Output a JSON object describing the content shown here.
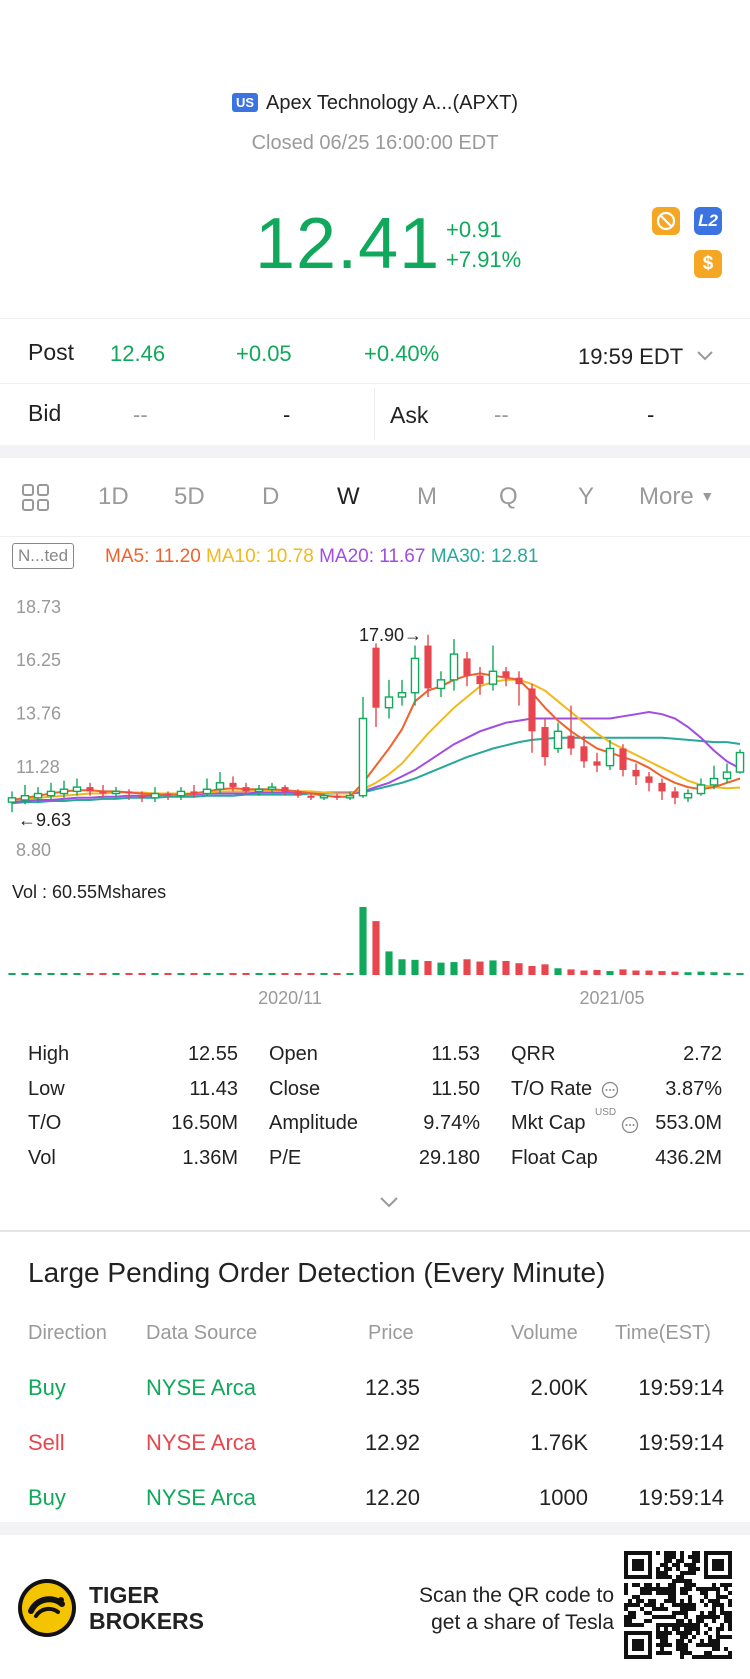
{
  "header": {
    "market_badge": "US",
    "title": "Apex Technology A...(APXT)",
    "status": "Closed 06/25 16:00:00 EDT"
  },
  "quote": {
    "price": "12.41",
    "change": "+0.91",
    "change_pct": "+7.91%",
    "l2_label": "L2",
    "dollar_label": "$"
  },
  "post": {
    "label": "Post",
    "price": "12.46",
    "change": "+0.05",
    "change_pct": "+0.40%",
    "time": "19:59 EDT"
  },
  "bid": {
    "label": "Bid",
    "price": "--",
    "size": "-"
  },
  "ask": {
    "label": "Ask",
    "price": "--",
    "size": "-"
  },
  "tabs": [
    "1D",
    "5D",
    "D",
    "W",
    "M",
    "Q",
    "Y",
    "More"
  ],
  "active_tab": "W",
  "indicators": {
    "adjust_label": "N...ted",
    "ma5": "MA5: 11.20",
    "ma10": "MA10: 10.78",
    "ma20": "MA20: 11.67",
    "ma30": "MA30: 12.81",
    "colors": {
      "ma5": "#f0622d",
      "ma10": "#f2b81c",
      "ma20": "#a04de2",
      "ma30": "#27a89a"
    }
  },
  "chart_data": {
    "type": "candlestick",
    "y_ticks": [
      "18.73",
      "16.25",
      "13.76",
      "11.28",
      "8.80"
    ],
    "ylim": [
      8.8,
      18.73
    ],
    "high_annotation": "17.90",
    "low_annotation": "9.63",
    "x_ticks": [
      "2020/11",
      "2021/05"
    ],
    "volume_label": "Vol  : 60.55Mshares",
    "candles": [
      {
        "o": 10.1,
        "c": 10.3,
        "h": 10.6,
        "l": 9.63
      },
      {
        "o": 10.2,
        "c": 10.4,
        "h": 10.9,
        "l": 10.0
      },
      {
        "o": 10.3,
        "c": 10.5,
        "h": 10.8,
        "l": 10.1
      },
      {
        "o": 10.4,
        "c": 10.6,
        "h": 11.0,
        "l": 10.2
      },
      {
        "o": 10.5,
        "c": 10.7,
        "h": 11.1,
        "l": 10.3
      },
      {
        "o": 10.6,
        "c": 10.8,
        "h": 11.2,
        "l": 10.4
      },
      {
        "o": 10.8,
        "c": 10.6,
        "h": 11.0,
        "l": 10.4
      },
      {
        "o": 10.6,
        "c": 10.5,
        "h": 10.9,
        "l": 10.3
      },
      {
        "o": 10.5,
        "c": 10.6,
        "h": 10.8,
        "l": 10.3
      },
      {
        "o": 10.6,
        "c": 10.5,
        "h": 10.7,
        "l": 10.2
      },
      {
        "o": 10.4,
        "c": 10.3,
        "h": 10.6,
        "l": 10.1
      },
      {
        "o": 10.3,
        "c": 10.5,
        "h": 10.8,
        "l": 10.1
      },
      {
        "o": 10.5,
        "c": 10.4,
        "h": 10.6,
        "l": 10.2
      },
      {
        "o": 10.4,
        "c": 10.6,
        "h": 10.8,
        "l": 10.2
      },
      {
        "o": 10.6,
        "c": 10.5,
        "h": 10.9,
        "l": 10.3
      },
      {
        "o": 10.5,
        "c": 10.7,
        "h": 11.2,
        "l": 10.4
      },
      {
        "o": 10.7,
        "c": 11.0,
        "h": 11.5,
        "l": 10.5
      },
      {
        "o": 11.0,
        "c": 10.8,
        "h": 11.3,
        "l": 10.6
      },
      {
        "o": 10.8,
        "c": 10.6,
        "h": 11.0,
        "l": 10.5
      },
      {
        "o": 10.6,
        "c": 10.7,
        "h": 10.9,
        "l": 10.4
      },
      {
        "o": 10.7,
        "c": 10.8,
        "h": 11.0,
        "l": 10.5
      },
      {
        "o": 10.8,
        "c": 10.6,
        "h": 10.9,
        "l": 10.4
      },
      {
        "o": 10.6,
        "c": 10.4,
        "h": 10.7,
        "l": 10.3
      },
      {
        "o": 10.4,
        "c": 10.3,
        "h": 10.5,
        "l": 10.2
      },
      {
        "o": 10.3,
        "c": 10.4,
        "h": 10.5,
        "l": 10.2
      },
      {
        "o": 10.4,
        "c": 10.3,
        "h": 10.5,
        "l": 10.2
      },
      {
        "o": 10.3,
        "c": 10.4,
        "h": 10.6,
        "l": 10.2
      },
      {
        "o": 10.4,
        "c": 14.0,
        "h": 15.0,
        "l": 10.3
      },
      {
        "o": 17.3,
        "c": 14.5,
        "h": 17.5,
        "l": 13.6
      },
      {
        "o": 14.5,
        "c": 15.0,
        "h": 15.8,
        "l": 14.0
      },
      {
        "o": 15.0,
        "c": 15.2,
        "h": 15.8,
        "l": 14.6
      },
      {
        "o": 15.2,
        "c": 16.8,
        "h": 17.4,
        "l": 14.6
      },
      {
        "o": 17.4,
        "c": 15.4,
        "h": 17.9,
        "l": 15.0
      },
      {
        "o": 15.4,
        "c": 15.8,
        "h": 16.2,
        "l": 15.0
      },
      {
        "o": 15.8,
        "c": 17.0,
        "h": 17.7,
        "l": 15.3
      },
      {
        "o": 16.8,
        "c": 16.0,
        "h": 17.1,
        "l": 15.5
      },
      {
        "o": 16.0,
        "c": 15.6,
        "h": 16.4,
        "l": 15.1
      },
      {
        "o": 15.6,
        "c": 16.2,
        "h": 17.4,
        "l": 15.3
      },
      {
        "o": 16.2,
        "c": 15.9,
        "h": 16.4,
        "l": 15.5
      },
      {
        "o": 15.9,
        "c": 15.6,
        "h": 16.2,
        "l": 14.6
      },
      {
        "o": 15.4,
        "c": 13.4,
        "h": 15.6,
        "l": 12.4
      },
      {
        "o": 13.6,
        "c": 12.2,
        "h": 14.0,
        "l": 11.8
      },
      {
        "o": 12.6,
        "c": 13.4,
        "h": 13.8,
        "l": 12.4
      },
      {
        "o": 13.2,
        "c": 12.6,
        "h": 14.6,
        "l": 12.3
      },
      {
        "o": 12.7,
        "c": 12.0,
        "h": 13.2,
        "l": 11.7
      },
      {
        "o": 12.0,
        "c": 11.8,
        "h": 12.4,
        "l": 11.5
      },
      {
        "o": 11.8,
        "c": 12.6,
        "h": 13.0,
        "l": 11.6
      },
      {
        "o": 12.6,
        "c": 11.6,
        "h": 12.8,
        "l": 11.3
      },
      {
        "o": 11.6,
        "c": 11.3,
        "h": 11.9,
        "l": 10.9
      },
      {
        "o": 11.3,
        "c": 11.0,
        "h": 11.5,
        "l": 10.6
      },
      {
        "o": 11.0,
        "c": 10.6,
        "h": 11.2,
        "l": 10.2
      },
      {
        "o": 10.6,
        "c": 10.3,
        "h": 10.8,
        "l": 10.0
      },
      {
        "o": 10.3,
        "c": 10.5,
        "h": 10.7,
        "l": 10.1
      },
      {
        "o": 10.5,
        "c": 10.9,
        "h": 11.2,
        "l": 10.4
      },
      {
        "o": 10.9,
        "c": 11.2,
        "h": 11.8,
        "l": 10.7
      },
      {
        "o": 11.2,
        "c": 11.5,
        "h": 11.9,
        "l": 11.0
      },
      {
        "o": 11.5,
        "c": 12.41,
        "h": 12.55,
        "l": 11.43
      }
    ],
    "ma5": [
      10.2,
      10.3,
      10.4,
      10.5,
      10.6,
      10.65,
      10.65,
      10.6,
      10.6,
      10.55,
      10.5,
      10.45,
      10.45,
      10.45,
      10.5,
      10.6,
      10.7,
      10.75,
      10.7,
      10.7,
      10.7,
      10.65,
      10.6,
      10.5,
      10.4,
      10.35,
      10.35,
      11.0,
      11.8,
      12.6,
      13.5,
      14.8,
      15.3,
      15.5,
      15.8,
      16.0,
      16.1,
      16.0,
      15.9,
      15.8,
      15.2,
      14.5,
      13.9,
      13.4,
      13.0,
      12.6,
      12.4,
      12.2,
      12.0,
      11.7,
      11.3,
      11.0,
      10.8,
      10.7,
      10.8,
      11.0,
      11.2
    ],
    "ma10": [
      10.2,
      10.25,
      10.3,
      10.35,
      10.4,
      10.45,
      10.5,
      10.5,
      10.55,
      10.55,
      10.55,
      10.5,
      10.5,
      10.5,
      10.5,
      10.55,
      10.6,
      10.6,
      10.6,
      10.65,
      10.65,
      10.65,
      10.6,
      10.6,
      10.55,
      10.5,
      10.5,
      10.7,
      11.0,
      11.4,
      11.9,
      12.6,
      13.3,
      13.9,
      14.5,
      15.0,
      15.5,
      15.7,
      15.8,
      15.8,
      15.6,
      15.3,
      14.8,
      14.3,
      13.8,
      13.3,
      12.9,
      12.6,
      12.3,
      12.0,
      11.7,
      11.4,
      11.1,
      10.9,
      10.8,
      10.75,
      10.78
    ],
    "ma20": [
      10.1,
      10.15,
      10.2,
      10.2,
      10.25,
      10.3,
      10.3,
      10.35,
      10.35,
      10.4,
      10.4,
      10.4,
      10.45,
      10.45,
      10.45,
      10.5,
      10.5,
      10.5,
      10.5,
      10.55,
      10.55,
      10.55,
      10.55,
      10.55,
      10.55,
      10.55,
      10.55,
      10.6,
      10.8,
      11.0,
      11.3,
      11.6,
      12.0,
      12.4,
      12.8,
      13.1,
      13.4,
      13.6,
      13.8,
      13.9,
      14.0,
      14.0,
      14.0,
      14.0,
      14.0,
      14.0,
      14.0,
      14.1,
      14.2,
      14.3,
      14.2,
      14.0,
      13.6,
      13.1,
      12.5,
      12.0,
      11.67
    ],
    "ma30": [
      10.05,
      10.1,
      10.1,
      10.15,
      10.15,
      10.2,
      10.2,
      10.25,
      10.25,
      10.3,
      10.3,
      10.3,
      10.35,
      10.35,
      10.35,
      10.4,
      10.4,
      10.4,
      10.45,
      10.45,
      10.45,
      10.45,
      10.45,
      10.5,
      10.5,
      10.5,
      10.5,
      10.55,
      10.7,
      10.85,
      11.0,
      11.2,
      11.45,
      11.7,
      11.95,
      12.2,
      12.4,
      12.6,
      12.75,
      12.9,
      13.0,
      13.05,
      13.1,
      13.1,
      13.1,
      13.1,
      13.1,
      13.1,
      13.1,
      13.1,
      13.1,
      13.05,
      13.0,
      12.95,
      12.9,
      12.9,
      12.81
    ],
    "volume": [
      1.2,
      1.0,
      0.9,
      1.1,
      1.0,
      1.2,
      1.3,
      1.0,
      0.9,
      1.1,
      0.8,
      1.0,
      0.9,
      1.1,
      1.0,
      1.2,
      1.4,
      1.6,
      1.3,
      1.1,
      1.4,
      1.2,
      1.1,
      1.0,
      1.2,
      1.1,
      1.2,
      60.55,
      48.0,
      21.0,
      14.0,
      13.5,
      12.5,
      11.0,
      11.5,
      14.0,
      12.0,
      13.0,
      12.5,
      10.5,
      8.0,
      9.5,
      6.0,
      5.0,
      4.0,
      4.5,
      3.5,
      5.0,
      4.0,
      4.0,
      3.5,
      3.0,
      2.5,
      3.0,
      2.5,
      2.0,
      1.36
    ]
  },
  "stats": {
    "col1": [
      {
        "label": "High",
        "value": "12.55"
      },
      {
        "label": "Low",
        "value": "11.43"
      },
      {
        "label": "T/O",
        "value": "16.50M"
      },
      {
        "label": "Vol",
        "value": "1.36M"
      }
    ],
    "col2": [
      {
        "label": "Open",
        "value": "11.53"
      },
      {
        "label": "Close",
        "value": "11.50"
      },
      {
        "label": "Amplitude",
        "value": "9.74%"
      },
      {
        "label": "P/E",
        "value": "29.180"
      }
    ],
    "col3": [
      {
        "label": "QRR",
        "value": "2.72"
      },
      {
        "label": "T/O Rate",
        "value": "3.87%"
      },
      {
        "label": "Mkt Cap",
        "value": "553.0M"
      },
      {
        "label": "Float Cap",
        "value": "436.2M"
      }
    ],
    "mkt_cap_unit": "USD"
  },
  "orders": {
    "title": "Large Pending Order Detection (Every Minute)",
    "headers": [
      "Direction",
      "Data Source",
      "Price",
      "Volume",
      "Time(EST)"
    ],
    "rows": [
      {
        "direction": "Buy",
        "source": "NYSE Arca",
        "price": "12.35",
        "volume": "2.00K",
        "time": "19:59:14",
        "side": "buy"
      },
      {
        "direction": "Sell",
        "source": "NYSE Arca",
        "price": "12.92",
        "volume": "1.76K",
        "time": "19:59:14",
        "side": "sell"
      },
      {
        "direction": "Buy",
        "source": "NYSE Arca",
        "price": "12.20",
        "volume": "1000",
        "time": "19:59:14",
        "side": "buy"
      }
    ]
  },
  "footer": {
    "brand_line1": "TIGER",
    "brand_line2": "BROKERS",
    "promo_line1": "Scan the QR code to",
    "promo_line2": "get a share of Tesla"
  }
}
